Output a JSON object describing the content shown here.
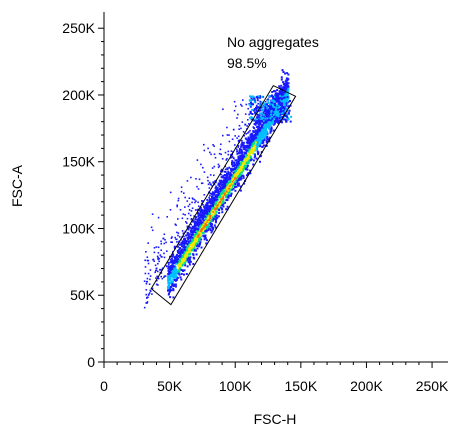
{
  "chart_data": {
    "type": "scatter",
    "style": "density-pseudocolor",
    "xlabel": "FSC-H",
    "ylabel": "FSC-A",
    "xlim": [
      0,
      262144
    ],
    "ylim": [
      0,
      262144
    ],
    "x_ticks": [
      {
        "value": 0,
        "label": "0"
      },
      {
        "value": 50000,
        "label": "50K"
      },
      {
        "value": 100000,
        "label": "100K"
      },
      {
        "value": 150000,
        "label": "150K"
      },
      {
        "value": 200000,
        "label": "200K"
      },
      {
        "value": 250000,
        "label": "250K"
      }
    ],
    "y_ticks": [
      {
        "value": 0,
        "label": "0"
      },
      {
        "value": 50000,
        "label": "50K"
      },
      {
        "value": 100000,
        "label": "100K"
      },
      {
        "value": 150000,
        "label": "150K"
      },
      {
        "value": 200000,
        "label": "200K"
      },
      {
        "value": 250000,
        "label": "250K"
      }
    ],
    "population": {
      "x_range": [
        40000,
        140000
      ],
      "slope": 1.55,
      "intercept": -15000,
      "core_x_range": [
        55000,
        115000
      ]
    },
    "gate": {
      "name": "No aggregates",
      "percent": "98.5%",
      "polygon": [
        [
          36000,
          55000
        ],
        [
          129000,
          207000
        ],
        [
          146000,
          199000
        ],
        [
          51000,
          43000
        ]
      ]
    },
    "colors": {
      "low": "#1a1aff",
      "mid_low": "#00bfff",
      "mid": "#00e08a",
      "mid_high": "#f2e600",
      "high": "#ff6a00"
    }
  }
}
